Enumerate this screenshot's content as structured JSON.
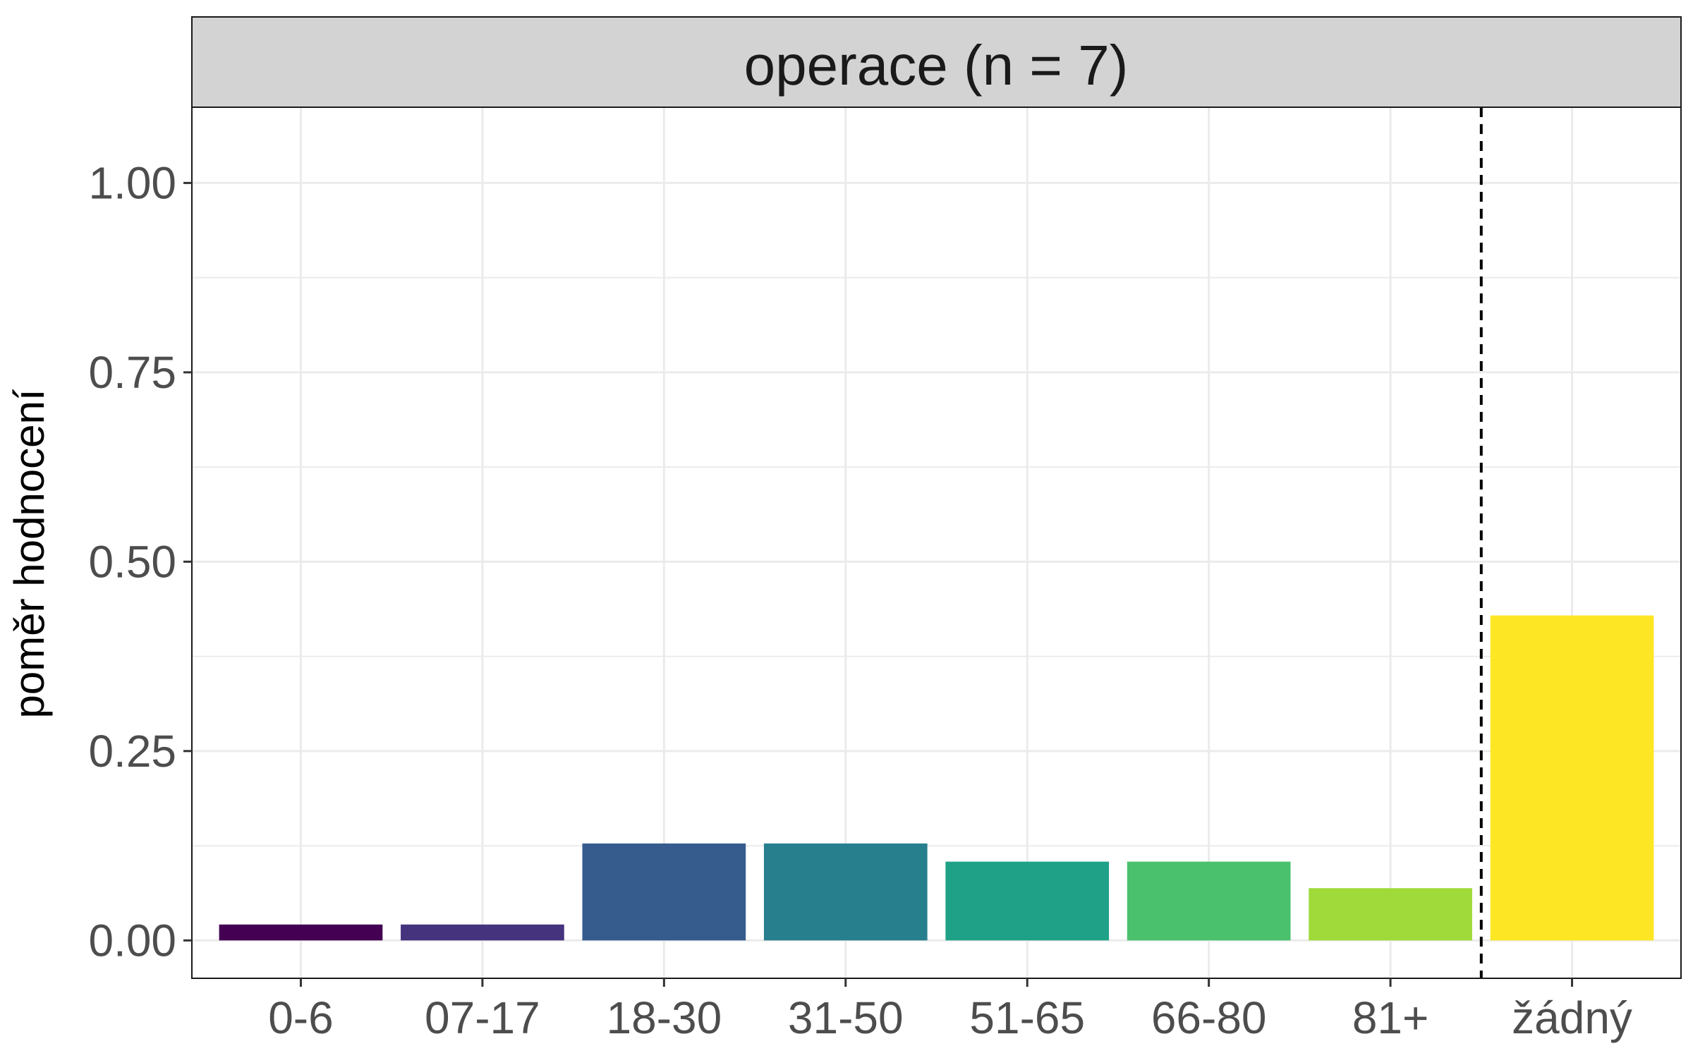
{
  "chart_data": {
    "type": "bar",
    "facet_title": "operace (n = 7)",
    "categories": [
      "0-6",
      "07-17",
      "18-30",
      "31-50",
      "51-65",
      "66-80",
      "81+",
      "žádný"
    ],
    "values": [
      0.021,
      0.021,
      0.128,
      0.128,
      0.104,
      0.104,
      0.069,
      0.429
    ],
    "colors": [
      "#440154",
      "#46337E",
      "#365C8D",
      "#277F8E",
      "#1FA187",
      "#4AC16D",
      "#9FDA3A",
      "#FDE725"
    ],
    "xlabel": "",
    "ylabel": "poměr hodnocení",
    "ylim": [
      -0.05,
      1.1
    ],
    "yticks": [
      0.0,
      0.25,
      0.5,
      0.75,
      1.0
    ],
    "ytick_labels": [
      "0.00",
      "0.25",
      "0.50",
      "0.75",
      "1.00"
    ],
    "separator_after_category": "81+",
    "separator_style": "dashed",
    "grid": true,
    "legend": "none"
  }
}
